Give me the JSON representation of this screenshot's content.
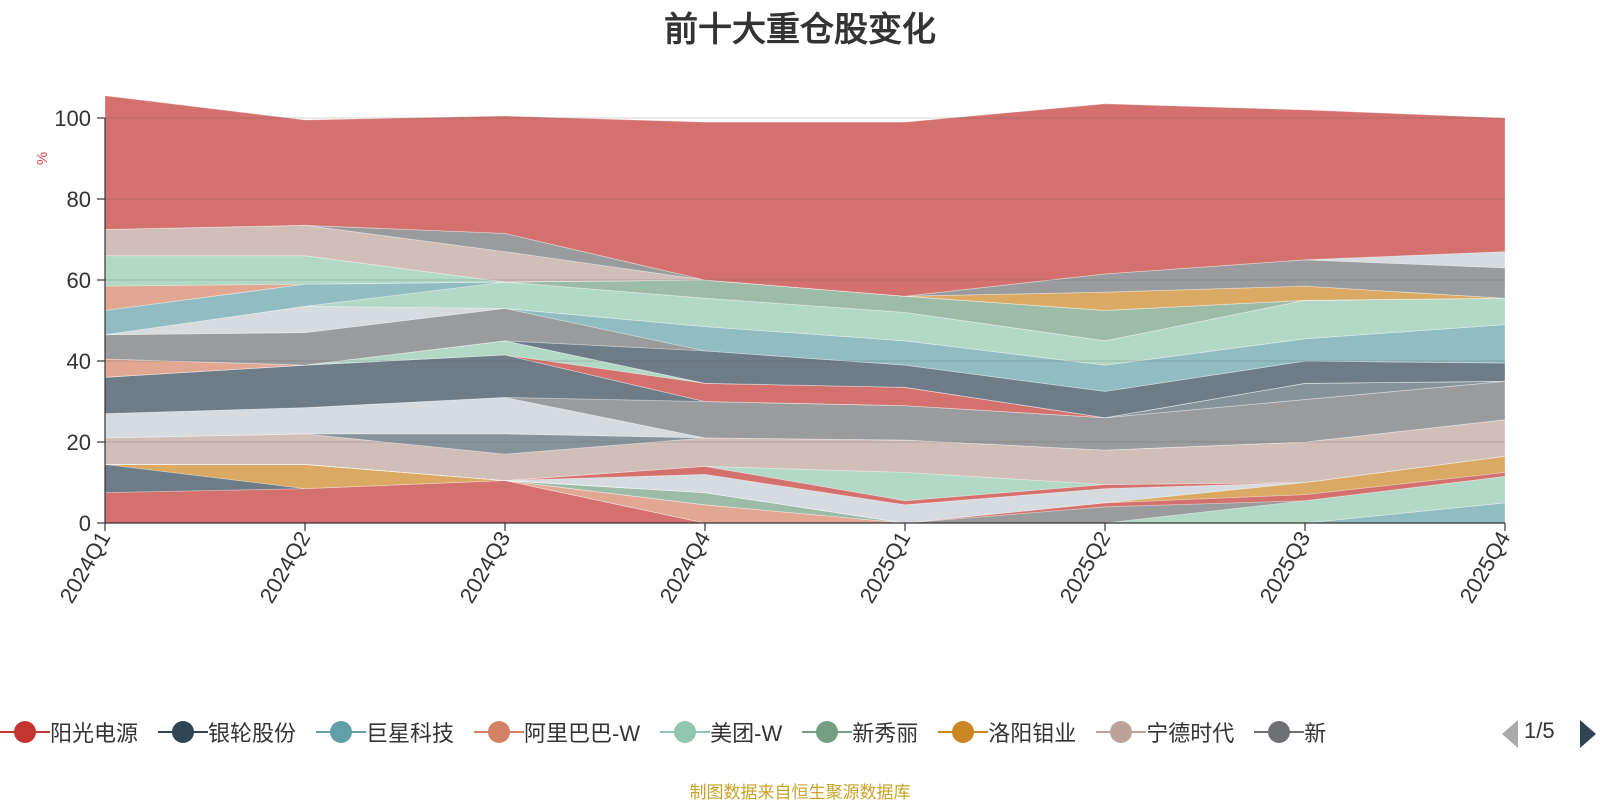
{
  "title": "前十大重仓股变化",
  "unit": "%",
  "source": "制图数据来自恒生聚源数据库",
  "pager": {
    "text": "1/5"
  },
  "legend_items": [
    {
      "name": "阳光电源",
      "color": "#c23531"
    },
    {
      "name": "银轮股份",
      "color": "#2f4554"
    },
    {
      "name": "巨星科技",
      "color": "#61a0a8"
    },
    {
      "name": "阿里巴巴-W",
      "color": "#d48265"
    },
    {
      "name": "美团-W",
      "color": "#91c7ae"
    },
    {
      "name": "新秀丽",
      "color": "#749f83"
    },
    {
      "name": "洛阳钼业",
      "color": "#ca8622"
    },
    {
      "name": "宁德时代",
      "color": "#bda29a"
    },
    {
      "name": "新",
      "color": "#6e7074"
    }
  ],
  "chart_data": {
    "type": "area",
    "stacked": true,
    "title": "前十大重仓股变化",
    "ylabel": "%",
    "ylim": [
      0,
      100
    ],
    "yticks": [
      0,
      20,
      40,
      60,
      80,
      100
    ],
    "grid": true,
    "categories": [
      "2024Q1",
      "2024Q2",
      "2024Q3",
      "2024Q4",
      "2025Q1",
      "2025Q2",
      "2025Q3",
      "2025Q4"
    ],
    "bands": [
      {
        "color": "#c23531",
        "values": [
          7.5,
          8.5,
          10.5,
          0,
          0,
          0,
          0,
          0
        ]
      },
      {
        "color": "#2f4554",
        "values": [
          7,
          0,
          0,
          0,
          0,
          0,
          0,
          0
        ]
      },
      {
        "color": "#ca8622",
        "values": [
          0,
          6,
          0,
          0,
          0,
          0,
          0,
          0
        ]
      },
      {
        "color": "#d48265",
        "values": [
          0,
          0,
          0,
          4.5,
          0,
          0,
          0,
          0
        ]
      },
      {
        "color": "#61a0a8",
        "values": [
          0,
          0,
          0,
          0,
          0,
          0,
          0,
          5
        ]
      },
      {
        "color": "#749f83",
        "values": [
          0,
          0,
          0,
          3,
          0,
          0,
          0,
          0
        ]
      },
      {
        "color": "#91c7ae",
        "values": [
          0,
          0,
          0,
          0,
          0,
          0,
          5.5,
          6.5
        ]
      },
      {
        "color": "#6e7074",
        "values": [
          0,
          0,
          0,
          0,
          0,
          4,
          0,
          0
        ]
      },
      {
        "color": "#546570",
        "values": [
          0,
          0,
          0,
          0,
          0,
          0,
          0,
          0
        ]
      },
      {
        "color": "#c23531",
        "values": [
          0,
          0,
          0,
          0,
          0,
          1,
          1.5,
          1
        ]
      },
      {
        "color": "#ca8622",
        "values": [
          0,
          0,
          0,
          0,
          0,
          0,
          3,
          4
        ]
      },
      {
        "color": "#c4ccd3",
        "values": [
          0,
          0,
          0,
          4.5,
          4.5,
          3.5,
          0,
          0
        ]
      },
      {
        "color": "#c23531",
        "values": [
          0,
          0,
          0,
          2,
          1,
          1,
          0,
          0
        ]
      },
      {
        "color": "#91c7ae",
        "values": [
          0,
          0,
          0,
          0,
          7,
          0,
          0,
          0
        ]
      },
      {
        "color": "#61a0a8",
        "values": [
          0,
          0,
          0,
          0,
          0,
          0,
          0,
          0
        ]
      },
      {
        "color": "#bda29a",
        "values": [
          6.5,
          7.5,
          6.5,
          7,
          8,
          8.5,
          10,
          9
        ]
      },
      {
        "color": "#546570",
        "values": [
          0,
          0,
          5,
          0,
          0,
          0,
          0,
          0
        ]
      },
      {
        "color": "#c4ccd3",
        "values": [
          6,
          6.5,
          9,
          0,
          0,
          0,
          0,
          0
        ]
      },
      {
        "color": "#6e7074",
        "values": [
          0,
          0,
          0,
          9,
          8.5,
          8,
          10.5,
          9.5
        ]
      },
      {
        "color": "#2f4554",
        "values": [
          9,
          10.5,
          10.5,
          0,
          0,
          0,
          0,
          0
        ]
      },
      {
        "color": "#546570",
        "values": [
          0,
          0,
          0,
          0,
          0,
          0,
          4,
          0
        ]
      },
      {
        "color": "#c23531",
        "values": [
          0,
          0,
          0,
          4.5,
          4.5,
          0,
          0,
          0
        ]
      },
      {
        "color": "#91c7ae",
        "values": [
          0,
          0,
          3.5,
          0,
          0,
          0,
          0,
          0
        ]
      },
      {
        "color": "#d48265",
        "values": [
          4.5,
          0,
          0,
          0,
          0,
          0,
          0,
          0
        ]
      },
      {
        "color": "#2f4554",
        "values": [
          0,
          0,
          0,
          8,
          5.5,
          6.5,
          5.5,
          4.5
        ]
      },
      {
        "color": "#6e7074",
        "values": [
          6,
          8,
          8,
          0,
          0,
          0,
          0,
          0
        ]
      },
      {
        "color": "#61a0a8",
        "values": [
          0,
          0,
          0,
          6,
          6,
          6.5,
          5.5,
          9.5
        ]
      },
      {
        "color": "#c4ccd3",
        "values": [
          0,
          6.5,
          0,
          0,
          0,
          0,
          0,
          0
        ]
      },
      {
        "color": "#91c7ae",
        "values": [
          0,
          0,
          6.5,
          7,
          7,
          6,
          9.5,
          6.5
        ]
      },
      {
        "color": "#61a0a8",
        "values": [
          6,
          5.5,
          0,
          0,
          0,
          0,
          0,
          0
        ]
      },
      {
        "color": "#749f83",
        "values": [
          0,
          0,
          0,
          4.5,
          4,
          7.5,
          0,
          0
        ]
      },
      {
        "color": "#d48265",
        "values": [
          6,
          0,
          0,
          0,
          0,
          0,
          0,
          0
        ]
      },
      {
        "color": "#91c7ae",
        "values": [
          7.5,
          7,
          0,
          0,
          0,
          0,
          0,
          0
        ]
      },
      {
        "color": "#ca8622",
        "values": [
          0,
          0,
          0,
          0,
          0,
          4.5,
          3.5,
          0
        ]
      },
      {
        "color": "#bda29a",
        "values": [
          6.5,
          7.5,
          7.5,
          0,
          0,
          0,
          0,
          0
        ]
      },
      {
        "color": "#546570",
        "values": [
          0,
          0,
          0,
          0,
          0,
          0,
          0,
          0
        ]
      },
      {
        "color": "#6e7074",
        "values": [
          0,
          0,
          4.5,
          0,
          0,
          4.5,
          6.5,
          7.5
        ]
      },
      {
        "color": "#c4ccd3",
        "values": [
          0,
          0,
          0,
          0,
          0,
          0,
          0,
          4
        ]
      },
      {
        "color": "#c23531",
        "values": [
          33,
          26,
          29,
          39,
          43,
          42,
          37,
          33
        ]
      }
    ]
  }
}
